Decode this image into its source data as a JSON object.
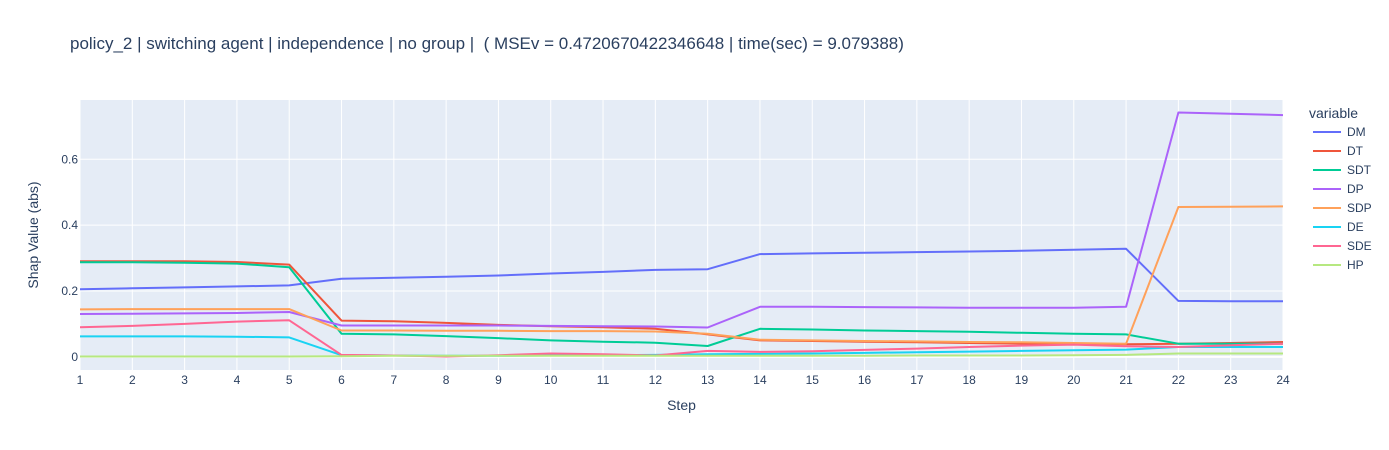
{
  "chart_data": {
    "type": "line",
    "title": "policy_2 | switching agent | independence | no group |  ( MSEv = 0.4720670422346648 | time(sec) = 9.079388)",
    "xlabel": "Step",
    "ylabel": "Shap Value (abs)",
    "xlim": [
      1,
      24
    ],
    "ylim": [
      -0.04,
      0.78
    ],
    "x_ticks": [
      1,
      2,
      3,
      4,
      5,
      6,
      7,
      8,
      9,
      10,
      11,
      12,
      13,
      14,
      15,
      16,
      17,
      18,
      19,
      20,
      21,
      22,
      23,
      24
    ],
    "y_ticks": [
      0,
      0.2,
      0.4,
      0.6
    ],
    "y_tick_labels": [
      "0",
      "0.2",
      "0.4",
      "0.6"
    ],
    "grid": true,
    "legend_title": "variable",
    "legend_placement": "right",
    "x": [
      1,
      2,
      3,
      4,
      5,
      6,
      7,
      8,
      9,
      10,
      11,
      12,
      13,
      14,
      15,
      16,
      17,
      18,
      19,
      20,
      21,
      22,
      23,
      24
    ],
    "series": [
      {
        "name": "DM",
        "color": "#636efa",
        "values": [
          0.205,
          0.208,
          0.211,
          0.214,
          0.217,
          0.237,
          0.24,
          0.243,
          0.247,
          0.253,
          0.258,
          0.264,
          0.266,
          0.312,
          0.314,
          0.316,
          0.318,
          0.32,
          0.322,
          0.325,
          0.328,
          0.17,
          0.169,
          0.169
        ]
      },
      {
        "name": "DT",
        "color": "#ef553b",
        "values": [
          0.29,
          0.29,
          0.29,
          0.288,
          0.28,
          0.11,
          0.108,
          0.103,
          0.097,
          0.093,
          0.09,
          0.085,
          0.068,
          0.05,
          0.048,
          0.046,
          0.044,
          0.042,
          0.04,
          0.038,
          0.038,
          0.04,
          0.042,
          0.045
        ]
      },
      {
        "name": "SDT",
        "color": "#00cc96",
        "values": [
          0.287,
          0.287,
          0.286,
          0.283,
          0.272,
          0.07,
          0.068,
          0.063,
          0.057,
          0.05,
          0.046,
          0.043,
          0.033,
          0.085,
          0.083,
          0.08,
          0.078,
          0.076,
          0.073,
          0.07,
          0.068,
          0.04,
          0.04,
          0.04
        ]
      },
      {
        "name": "DP",
        "color": "#ab63fa",
        "values": [
          0.13,
          0.131,
          0.132,
          0.133,
          0.136,
          0.095,
          0.095,
          0.095,
          0.095,
          0.094,
          0.093,
          0.092,
          0.089,
          0.152,
          0.152,
          0.151,
          0.15,
          0.149,
          0.149,
          0.149,
          0.152,
          0.742,
          0.738,
          0.734
        ]
      },
      {
        "name": "SDP",
        "color": "#ffa15a",
        "values": [
          0.144,
          0.145,
          0.145,
          0.145,
          0.145,
          0.08,
          0.08,
          0.079,
          0.079,
          0.078,
          0.078,
          0.077,
          0.07,
          0.052,
          0.05,
          0.048,
          0.047,
          0.045,
          0.044,
          0.042,
          0.04,
          0.455,
          0.456,
          0.457
        ]
      },
      {
        "name": "DE",
        "color": "#19d3f3",
        "values": [
          0.062,
          0.062,
          0.062,
          0.061,
          0.059,
          0.005,
          0.004,
          0.003,
          0.003,
          0.004,
          0.005,
          0.006,
          0.008,
          0.009,
          0.01,
          0.012,
          0.014,
          0.016,
          0.018,
          0.02,
          0.022,
          0.03,
          0.03,
          0.03
        ]
      },
      {
        "name": "SDE",
        "color": "#ff6692",
        "values": [
          0.09,
          0.094,
          0.1,
          0.107,
          0.111,
          0.006,
          0.004,
          0.001,
          0.005,
          0.01,
          0.008,
          0.004,
          0.018,
          0.015,
          0.017,
          0.021,
          0.025,
          0.03,
          0.034,
          0.037,
          0.032,
          0.03,
          0.035,
          0.04
        ]
      },
      {
        "name": "HP",
        "color": "#b6e880",
        "values": [
          0.001,
          0.001,
          0.001,
          0.001,
          0.001,
          0.002,
          0.003,
          0.003,
          0.003,
          0.003,
          0.003,
          0.003,
          0.003,
          0.003,
          0.003,
          0.003,
          0.004,
          0.004,
          0.004,
          0.005,
          0.006,
          0.01,
          0.01,
          0.01
        ]
      }
    ]
  }
}
